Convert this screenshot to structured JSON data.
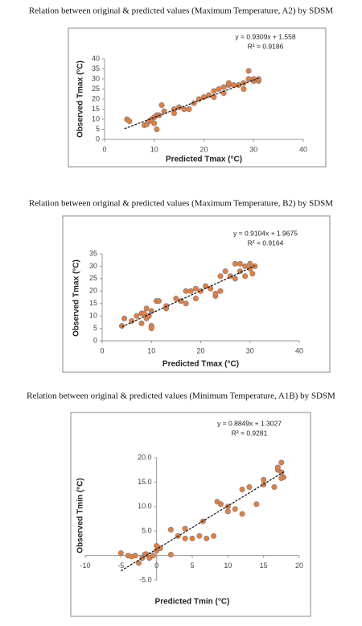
{
  "chart_data": [
    {
      "type": "scatter",
      "title": "Relation between original & predicted values (Maximum Temperature, A2) by SDSM",
      "x_label": "Predicted Tmax (°C)",
      "y_label": "Observed Tmax (°C)",
      "equation": "y = 0.9309x + 1.558",
      "r_squared": "R² = 0.9186",
      "x": [
        4.5,
        5,
        8,
        8.5,
        9,
        9.5,
        10,
        10,
        10.5,
        11,
        10.5,
        11.5,
        12,
        14,
        14,
        15,
        16,
        17,
        18,
        19,
        20,
        21,
        22,
        22,
        23,
        24,
        24,
        25,
        25,
        26,
        27,
        28,
        28,
        29,
        29,
        30,
        30,
        31,
        31
      ],
      "y": [
        10,
        9,
        7,
        7.5,
        9,
        10,
        8,
        11,
        12,
        12,
        5,
        17,
        14,
        13,
        15,
        16,
        15,
        15,
        18,
        20,
        21,
        22,
        21,
        24,
        25,
        23,
        26,
        27,
        28,
        27,
        27,
        25,
        28,
        30,
        34,
        29,
        30,
        29,
        30
      ],
      "color": "#ed7d31",
      "trend": {
        "x": [
          4,
          31
        ],
        "y": [
          5.28,
          30.4
        ]
      },
      "xlim": [
        0,
        40
      ],
      "ylim": [
        0,
        40
      ],
      "xticks": [
        0,
        10,
        20,
        30,
        40
      ],
      "yticks": [
        0,
        5,
        10,
        15,
        20,
        25,
        30,
        35,
        40
      ]
    },
    {
      "type": "scatter",
      "title": "Relation between original & predicted values (Maximum Temperature, B2) by SDSM",
      "x_label": "Predicted Tmax (°C)",
      "y_label": "Observed Tmax (°C)",
      "equation": "y = 0.9104x + 1.9675",
      "r_squared": "R² = 0.9164",
      "x": [
        4,
        4.5,
        6,
        7,
        8,
        8,
        8.5,
        9,
        9,
        9.5,
        10,
        10,
        10,
        11,
        11.5,
        13,
        13,
        15,
        16,
        17,
        17,
        18,
        19,
        19,
        20,
        21,
        22,
        23,
        23,
        24,
        24,
        25,
        26,
        27,
        27,
        28,
        28,
        29,
        29,
        30,
        30,
        30.5,
        31
      ],
      "y": [
        6,
        9,
        8,
        10,
        11,
        7,
        11,
        13,
        9,
        10,
        12,
        6,
        5,
        16,
        16,
        13,
        14,
        17,
        16,
        15,
        20,
        20,
        17,
        21,
        20,
        22,
        21,
        18,
        19,
        26,
        20,
        28,
        26,
        31,
        25,
        28,
        31,
        30,
        26,
        29,
        31,
        27,
        30
      ],
      "color": "#ed7d31",
      "trend": {
        "x": [
          4,
          31
        ],
        "y": [
          5.61,
          30.19
        ]
      },
      "xlim": [
        0,
        40
      ],
      "ylim": [
        0,
        35
      ],
      "xticks": [
        0,
        10,
        20,
        30,
        40
      ],
      "yticks": [
        0,
        5,
        10,
        15,
        20,
        25,
        30,
        35
      ]
    },
    {
      "type": "scatter",
      "title": "Relation between original & predicted values (Minimum Temperature, A1B) by SDSM",
      "x_label": "Predicted Tmin (°C)",
      "y_label": "Observed Tmin (°C)",
      "equation": "y = 0.8849x + 1.3027",
      "r_squared": "R² = 0.9281",
      "x": [
        -5,
        -4,
        -3.5,
        -3,
        -2.5,
        -2,
        -1.5,
        -1,
        -0.5,
        0,
        0,
        0.5,
        2,
        2,
        3,
        4,
        4,
        5,
        6,
        6.5,
        7,
        8,
        8.5,
        9,
        10,
        10,
        11,
        12,
        12,
        13,
        14,
        15,
        15,
        16.5,
        17,
        17,
        17.5,
        17.5,
        17.8,
        17.5
      ],
      "y": [
        0.5,
        0,
        -0.2,
        0,
        -1.5,
        -0.5,
        0.3,
        -0.5,
        0,
        1,
        2,
        1.5,
        5.3,
        0.2,
        4,
        3.5,
        5.5,
        3.5,
        4,
        7,
        3.5,
        4,
        11,
        10.5,
        9,
        10,
        9.5,
        13.5,
        8.5,
        14,
        10.5,
        15.5,
        14.5,
        14,
        17.5,
        18,
        19,
        17,
        16,
        15.8
      ],
      "color": "#ed7d31",
      "trend": {
        "x": [
          -5,
          18
        ],
        "y": [
          -3.12,
          17.23
        ]
      },
      "xlim": [
        -10,
        20
      ],
      "ylim": [
        -5,
        20
      ],
      "xticks": [
        -10,
        -5,
        0,
        5,
        10,
        15,
        20
      ],
      "yticks": [
        {
          "value": -5,
          "label": "-5.0"
        },
        {
          "value": 0,
          "label": "0.0"
        },
        {
          "value": 5,
          "label": "5.0"
        },
        {
          "value": 10,
          "label": "10.0"
        },
        {
          "value": 15,
          "label": "15.0"
        },
        {
          "value": 20,
          "label": "20.0"
        }
      ]
    }
  ]
}
